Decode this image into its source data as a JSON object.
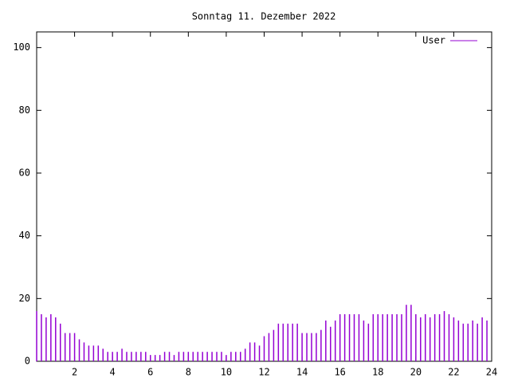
{
  "chart_data": {
    "type": "impulses",
    "title": "Sonntag 11. Dezember 2022",
    "x": [
      0,
      0.25,
      0.5,
      0.75,
      1,
      1.25,
      1.5,
      1.75,
      2,
      2.25,
      2.5,
      2.75,
      3,
      3.25,
      3.5,
      3.75,
      4,
      4.25,
      4.5,
      4.75,
      5,
      5.25,
      5.5,
      5.75,
      6,
      6.25,
      6.5,
      6.75,
      7,
      7.25,
      7.5,
      7.75,
      8,
      8.25,
      8.5,
      8.75,
      9,
      9.25,
      9.5,
      9.75,
      10,
      10.25,
      10.5,
      10.75,
      11,
      11.25,
      11.5,
      11.75,
      12,
      12.25,
      12.5,
      12.75,
      13,
      13.25,
      13.5,
      13.75,
      14,
      14.25,
      14.5,
      14.75,
      15,
      15.25,
      15.5,
      15.75,
      16,
      16.25,
      16.5,
      16.75,
      17,
      17.25,
      17.5,
      17.75,
      18,
      18.25,
      18.5,
      18.75,
      19,
      19.25,
      19.5,
      19.75,
      20,
      20.25,
      20.5,
      20.75,
      21,
      21.25,
      21.5,
      21.75,
      22,
      22.25,
      22.5,
      22.75,
      23,
      23.25,
      23.5,
      23.75
    ],
    "series": [
      {
        "name": "User",
        "color": "#9400d3",
        "values": [
          16,
          15,
          14,
          15,
          14,
          12,
          9,
          9,
          9,
          7,
          6,
          5,
          5,
          5,
          4,
          3,
          3,
          3,
          4,
          3,
          3,
          3,
          3,
          3,
          2,
          2,
          2,
          3,
          3,
          2,
          3,
          3,
          3,
          3,
          3,
          3,
          3,
          3,
          3,
          3,
          2,
          3,
          3,
          3,
          4,
          6,
          6,
          5,
          8,
          9,
          10,
          12,
          12,
          12,
          12,
          12,
          9,
          9,
          9,
          9,
          10,
          13,
          11,
          13,
          15,
          15,
          15,
          15,
          15,
          13,
          12,
          15,
          15,
          15,
          15,
          15,
          15,
          15,
          18,
          18,
          15,
          14,
          15,
          14,
          15,
          15,
          16,
          15,
          14,
          13,
          12,
          12,
          13,
          12,
          14,
          13
        ]
      }
    ],
    "xlim": [
      0,
      24
    ],
    "xticks": [
      2,
      4,
      6,
      8,
      10,
      12,
      14,
      16,
      18,
      20,
      22,
      24
    ],
    "ylim": [
      0,
      105
    ],
    "yticks": [
      0,
      20,
      40,
      60,
      80,
      100
    ],
    "legend": "top-right"
  }
}
